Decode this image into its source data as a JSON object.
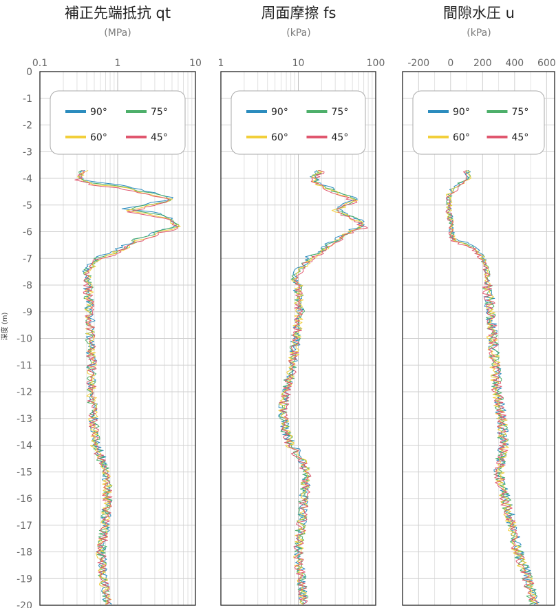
{
  "y_axis": {
    "label": "深度 (m)",
    "range": [
      0,
      -20
    ],
    "ticks": [
      0,
      -1,
      -2,
      -3,
      -4,
      -5,
      -6,
      -7,
      -8,
      -9,
      -10,
      -11,
      -12,
      -13,
      -14,
      -15,
      -16,
      -17,
      -18,
      -19,
      -20
    ]
  },
  "colors": {
    "90°": "#2b8cbe",
    "75°": "#4daf6a",
    "60°": "#f2cf3a",
    "45°": "#e0566e"
  },
  "chart_data": [
    {
      "type": "line",
      "title": "補正先端抵抗 qt",
      "unit": "(MPa)",
      "xscale": "log",
      "xlim": [
        0.1,
        10
      ],
      "xticks": [
        0.1,
        1,
        10
      ],
      "xtick_labels": [
        "0.1",
        "1",
        "10"
      ],
      "ylim": [
        0,
        -20
      ],
      "grid": true,
      "legend": {
        "placement": "top",
        "entries": [
          "90°",
          "75°",
          "60°",
          "45°"
        ]
      },
      "profile": {
        "depth": [
          -3.7,
          -4.0,
          -4.2,
          -4.5,
          -4.8,
          -5.0,
          -5.2,
          -5.4,
          -5.6,
          -5.8,
          -6.0,
          -6.3,
          -6.6,
          -7.0,
          -7.5,
          -8.0,
          -9.0,
          -10.0,
          -11.0,
          -12.0,
          -13.0,
          -14.0,
          -14.4,
          -15.0,
          -15.5,
          -16.0,
          -17.0,
          -18.0,
          -19.0,
          -20.0
        ],
        "value": [
          0.38,
          0.3,
          0.45,
          2.0,
          5.0,
          2.5,
          1.2,
          3.5,
          5.0,
          6.0,
          3.5,
          1.8,
          1.2,
          0.55,
          0.4,
          0.42,
          0.44,
          0.45,
          0.47,
          0.46,
          0.5,
          0.52,
          0.6,
          0.7,
          0.75,
          0.75,
          0.7,
          0.62,
          0.66,
          0.75
        ]
      },
      "series": [
        {
          "name": "90°"
        },
        {
          "name": "75°"
        },
        {
          "name": "60°"
        },
        {
          "name": "45°"
        }
      ]
    },
    {
      "type": "line",
      "title": "周面摩擦 fs",
      "unit": "(kPa)",
      "xscale": "log",
      "xlim": [
        1,
        100
      ],
      "xticks": [
        1,
        10,
        100
      ],
      "xtick_labels": [
        "1",
        "10",
        "100"
      ],
      "ylim": [
        0,
        -20
      ],
      "grid": true,
      "legend": {
        "placement": "top",
        "entries": [
          "90°",
          "75°",
          "60°",
          "45°"
        ]
      },
      "profile": {
        "depth": [
          -3.7,
          -4.0,
          -4.3,
          -4.6,
          -4.8,
          -5.0,
          -5.2,
          -5.4,
          -5.6,
          -5.8,
          -6.0,
          -6.5,
          -7.0,
          -7.5,
          -7.8,
          -8.0,
          -9.0,
          -10.0,
          -11.0,
          -12.0,
          -12.5,
          -13.0,
          -13.5,
          -14.0,
          -14.5,
          -15.0,
          -16.0,
          -17.0,
          -18.0,
          -19.0,
          -20.0
        ],
        "value": [
          20,
          15,
          20,
          35,
          55,
          40,
          30,
          45,
          60,
          70,
          45,
          25,
          14,
          10,
          9,
          10,
          10.5,
          9.5,
          8.5,
          7,
          6.5,
          6.5,
          7,
          8,
          11,
          13,
          12,
          11,
          10,
          11,
          12
        ]
      },
      "series": [
        {
          "name": "90°"
        },
        {
          "name": "75°"
        },
        {
          "name": "60°"
        },
        {
          "name": "45°"
        }
      ]
    },
    {
      "type": "line",
      "title": "間隙水圧 u",
      "unit": "(kPa)",
      "xscale": "linear",
      "xlim": [
        -300,
        650
      ],
      "xticks": [
        -200,
        0,
        200,
        400,
        600
      ],
      "xtick_labels": [
        "-200",
        "0",
        "200",
        "400",
        "600"
      ],
      "ylim": [
        0,
        -20
      ],
      "grid": true,
      "legend": {
        "placement": "top",
        "entries": [
          "90°",
          "75°",
          "60°",
          "45°"
        ]
      },
      "profile": {
        "depth": [
          -3.7,
          -4.0,
          -4.3,
          -4.6,
          -5.0,
          -5.3,
          -5.6,
          -6.0,
          -6.3,
          -6.6,
          -7.0,
          -7.5,
          -8.0,
          -9.0,
          -10.0,
          -11.0,
          -12.0,
          -13.0,
          -14.0,
          -15.0,
          -16.0,
          -17.0,
          -18.0,
          -19.0,
          -20.0
        ],
        "value": [
          100,
          110,
          40,
          -10,
          -10,
          -10,
          0,
          0,
          20,
          150,
          200,
          230,
          230,
          250,
          260,
          280,
          290,
          320,
          330,
          300,
          340,
          380,
          420,
          480,
          520
        ]
      },
      "series": [
        {
          "name": "90°"
        },
        {
          "name": "75°"
        },
        {
          "name": "60°"
        },
        {
          "name": "45°"
        }
      ]
    }
  ]
}
